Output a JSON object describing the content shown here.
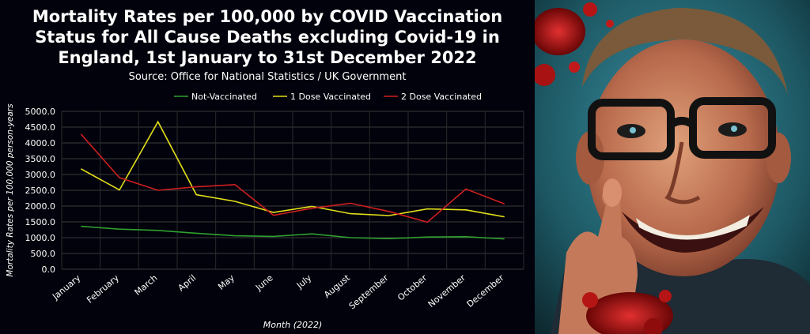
{
  "chart_data": {
    "type": "line",
    "title_lines": [
      "Mortality Rates per 100,000 by COVID Vaccination",
      "Status for All Cause Deaths excluding Covid-19 in",
      "England, 1st January to 31st December 2022"
    ],
    "subtitle": "Source: Office for National Statistics / UK Government",
    "xlabel": "Month (2022)",
    "ylabel": "Mortality Rates per 100,000 person-years",
    "ylim": [
      0,
      5000
    ],
    "yticks": [
      "0.0",
      "500.0",
      "1000.0",
      "1500.0",
      "2000.0",
      "2500.0",
      "3000.0",
      "3500.0",
      "4000.0",
      "4500.0",
      "5000.0"
    ],
    "categories": [
      "January",
      "February",
      "March",
      "April",
      "May",
      "June",
      "July",
      "August",
      "September",
      "October",
      "November",
      "December"
    ],
    "grid": true,
    "legend_position": "top",
    "series": [
      {
        "name": "Not-Vaccinated",
        "color": "#2fa12f",
        "values": [
          1360,
          1270,
          1230,
          1140,
          1060,
          1040,
          1120,
          1000,
          970,
          1020,
          1030,
          960
        ]
      },
      {
        "name": "1 Dose Vaccinated",
        "color": "#e3df1a",
        "values": [
          3180,
          2510,
          4670,
          2360,
          2150,
          1800,
          1990,
          1760,
          1700,
          1910,
          1880,
          1660
        ]
      },
      {
        "name": "2 Dose Vaccinated",
        "color": "#cf1f1f",
        "values": [
          4280,
          2900,
          2500,
          2610,
          2680,
          1710,
          1930,
          2090,
          1830,
          1490,
          2540,
          2070
        ]
      }
    ]
  },
  "photo": {
    "description_icon": "smiling-man-with-glasses-portrait"
  },
  "colors": {
    "background": "#02020c",
    "text": "#ffffff",
    "grid": "#3a3a3a"
  }
}
